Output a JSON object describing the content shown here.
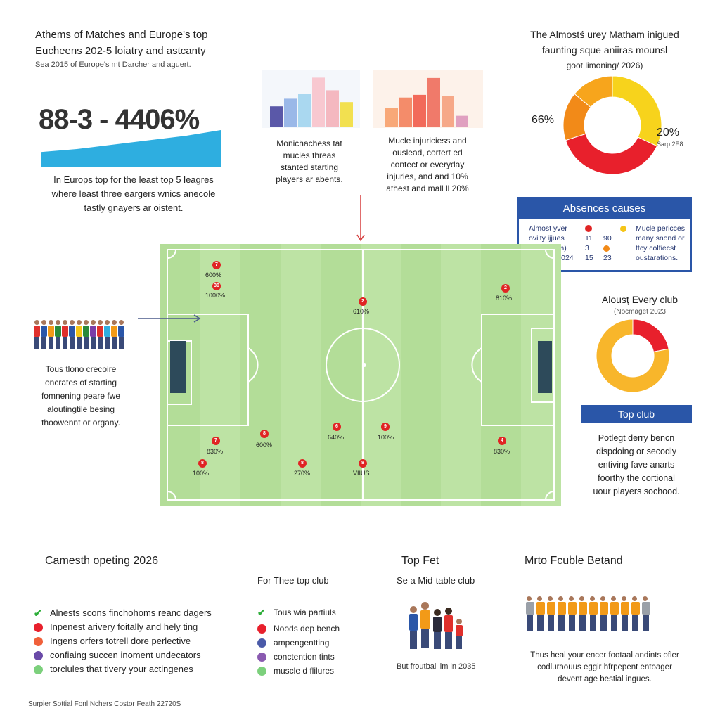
{
  "header": {
    "title_line1": "Athems of Matches and Europe's top",
    "title_line2": "Eucheens 202-5 loiatry and astcanty",
    "subtitle": "Sea 2015 of Europe's mt Darcher and aguert.",
    "big_stat": "88-3 - 4406%",
    "blurb_line1": "In Europs top for the least top 5 leagres",
    "blurb_line2": "where least three eargers wnics anecole",
    "blurb_line3": "tastly gnayers ar oistent."
  },
  "mini_chart_1": {
    "caption_lines": [
      "Monichachess tat",
      "mucles threas",
      "stanted starting",
      "players ar abents."
    ]
  },
  "mini_chart_2": {
    "caption_lines": [
      "Mucle injuriciess and",
      "ouslead, cortert ed",
      "contect or everyday",
      "injuries, and and 10%",
      "athest and mall ll 20%"
    ]
  },
  "donut_main": {
    "title_line1": "The Almostś urey Matham inigued",
    "title_line2": "faunting sque aniiras mounsl",
    "title_line3": "goot limoning/ 2026)",
    "left_label": "66%",
    "right_label": "20%",
    "right_sub": "Sarp 2E8"
  },
  "absences": {
    "title": "Absences causes",
    "rows": [
      {
        "label": "Almost yver",
        "num1": "1",
        "num2": "",
        "right": "Mucle pericces"
      },
      {
        "label": "ovilty ijjues",
        "num1": "11",
        "num2": "90",
        "right": "many snond or"
      },
      {
        "label": "contice ein)",
        "num1": "3",
        "num2": "15",
        "right": "ttcy colfiecst"
      },
      {
        "label": "In fnoay 2024",
        "num1": "15",
        "num2": "23",
        "right": "oustarations."
      }
    ]
  },
  "pitch": {
    "markers": [
      {
        "icon": "7",
        "label": "600%"
      },
      {
        "icon": "30",
        "label": "1000%"
      },
      {
        "icon": "2",
        "label": "610%"
      },
      {
        "icon": "2",
        "label": "810%"
      },
      {
        "icon": "7",
        "label": "830%"
      },
      {
        "icon": "8",
        "label": "600%"
      },
      {
        "icon": "6",
        "label": "640%"
      },
      {
        "icon": "9",
        "label": "100%"
      },
      {
        "icon": "4",
        "label": "830%"
      },
      {
        "icon": "8",
        "label": "100%"
      },
      {
        "icon": "8",
        "label": "270%"
      },
      {
        "icon": "8",
        "label": "VIIUS"
      }
    ]
  },
  "side_blurb": {
    "lines": [
      "Tous tlono crecoire",
      "oncrates of starting",
      "fomnening peare fwe",
      "aloutingtile besing",
      "thoowennt or organy."
    ]
  },
  "every_club": {
    "title": "Alousț Every club",
    "subtitle": "(Nocmaget 2023"
  },
  "top_club": {
    "label": "Top club",
    "lines": [
      "Potlegt derry bencn",
      "dispdoing or secodly",
      "entiving fave anarts",
      "foorthy the cortional",
      "uour players sochood."
    ]
  },
  "bottom_left": {
    "title": "Camesth opeting 2026",
    "items": [
      {
        "text": "Alnests scons finchohoms reanc dagers"
      },
      {
        "text": "Inpenest arivery foitally and hely ting"
      },
      {
        "text": "Ingens orfers totrell dore perlective"
      },
      {
        "text": "confiaing succen inoment undecators"
      },
      {
        "text": "torclules that tivery your actingenes"
      }
    ]
  },
  "bottom_mid": {
    "title": "For Thee top club",
    "items": [
      {
        "text": "Tous wia partiuls"
      },
      {
        "text": "Noods dep bench"
      },
      {
        "text": "ampengentting"
      },
      {
        "text": "conctention tints"
      },
      {
        "text": "muscle d flilures"
      }
    ]
  },
  "bottom_center": {
    "heading": "Top Fet",
    "subheading": "Se a Mid-table club",
    "caption": "But froutball im in 2035"
  },
  "bottom_right": {
    "title": "Mrto Fcuble Betand",
    "lines": [
      "Thus heal your encer footaal andints ofler",
      "codluraouus eggir hfrpepent entoager",
      "devent age bestial ingues."
    ]
  },
  "footer": {
    "text": "Surpier Sottial Fonl Nchers Costor Feath 22720S"
  },
  "colors": {
    "accent_blue": "#2a56a8",
    "pitch_green": "#bde3a4",
    "marker_red": "#e02424",
    "cyan_area": "#2eaee0"
  },
  "chart_data": [
    {
      "type": "bar",
      "title": "",
      "categories": [
        "a",
        "b",
        "c",
        "d",
        "e",
        "f"
      ],
      "values": [
        24,
        33,
        39,
        58,
        43,
        29
      ],
      "ylim": [
        0,
        60
      ]
    },
    {
      "type": "bar",
      "title": "",
      "categories": [
        "a",
        "b",
        "c",
        "d",
        "e",
        "f"
      ],
      "values": [
        28,
        43,
        47,
        72,
        45,
        16
      ],
      "ylim": [
        0,
        75
      ]
    },
    {
      "type": "pie",
      "title": "The Almostś urey Matham inigued faunting sque aniiras mounsl",
      "slices": [
        {
          "name": "yellow",
          "value": 32,
          "color": "#f7d31c"
        },
        {
          "name": "red",
          "value": 38,
          "color": "#e8202c"
        },
        {
          "name": "orange",
          "value": 16,
          "color": "#f28a18"
        },
        {
          "name": "amber",
          "value": 14,
          "color": "#f7a51c"
        }
      ]
    },
    {
      "type": "pie",
      "title": "Alousț Every club",
      "slices": [
        {
          "name": "red",
          "value": 22,
          "color": "#e8202c"
        },
        {
          "name": "amber",
          "value": 78,
          "color": "#f8b62b"
        }
      ]
    },
    {
      "type": "area",
      "title": "88-3 - 4406%",
      "x": [
        0,
        1,
        2,
        3,
        4,
        5
      ],
      "values": [
        20,
        24,
        30,
        36,
        42,
        50
      ],
      "ylim": [
        0,
        50
      ]
    }
  ]
}
